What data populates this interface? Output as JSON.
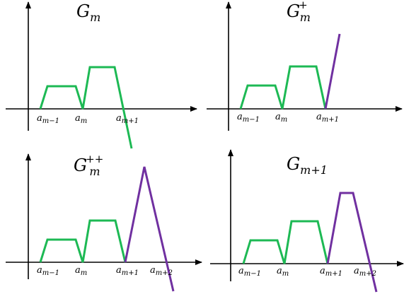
{
  "panels": [
    {
      "title": {
        "base": "G",
        "sub": "m",
        "sup": ""
      },
      "ticks": [
        {
          "base": "a",
          "sub": "m−1"
        },
        {
          "base": "a",
          "sub": "m"
        },
        {
          "base": "a",
          "sub": "m+1"
        }
      ]
    },
    {
      "title": {
        "base": "G",
        "sub": "m",
        "sup": "+"
      },
      "ticks": [
        {
          "base": "a",
          "sub": "m−1"
        },
        {
          "base": "a",
          "sub": "m"
        },
        {
          "base": "a",
          "sub": "m+1"
        }
      ]
    },
    {
      "title": {
        "base": "G",
        "sub": "m",
        "sup": "++"
      },
      "ticks": [
        {
          "base": "a",
          "sub": "m−1"
        },
        {
          "base": "a",
          "sub": "m"
        },
        {
          "base": "a",
          "sub": "m+1"
        },
        {
          "base": "a",
          "sub": "m+2"
        }
      ]
    },
    {
      "title": {
        "base": "G",
        "sub": "m+1",
        "sup": ""
      },
      "ticks": [
        {
          "base": "a",
          "sub": "m−1"
        },
        {
          "base": "a",
          "sub": "m"
        },
        {
          "base": "a",
          "sub": "m+1"
        },
        {
          "base": "a",
          "sub": "m+2"
        }
      ]
    }
  ],
  "colors": {
    "original_graph": "#1db954",
    "added_segments": "#7030a0",
    "axes": "#000000"
  }
}
